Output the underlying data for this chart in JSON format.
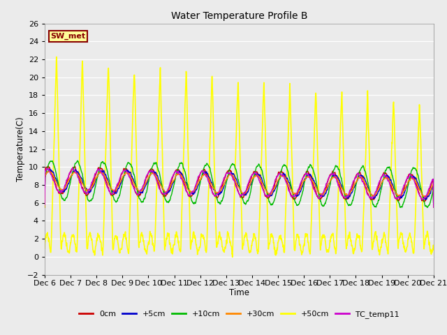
{
  "title": "Water Temperature Profile B",
  "xlabel": "Time",
  "ylabel": "Temperature(C)",
  "ylim": [
    -2,
    26
  ],
  "yticks": [
    -2,
    0,
    2,
    4,
    6,
    8,
    10,
    12,
    14,
    16,
    18,
    20,
    22,
    24,
    26
  ],
  "background_color": "#ebebeb",
  "plot_bg_color": "#ebebeb",
  "series": {
    "0cm": {
      "color": "#cc0000",
      "lw": 1.0
    },
    "+5cm": {
      "color": "#0000cc",
      "lw": 1.0
    },
    "+10cm": {
      "color": "#00bb00",
      "lw": 1.0
    },
    "+30cm": {
      "color": "#ff8800",
      "lw": 1.0
    },
    "+50cm": {
      "color": "#ffff00",
      "lw": 1.2
    },
    "TC_temp11": {
      "color": "#cc00cc",
      "lw": 1.0
    }
  },
  "annotation_label": "SW_met",
  "annotation_bg": "#ffff99",
  "annotation_border": "#880000",
  "xtick_labels": [
    "Dec 6",
    "Dec 7",
    "Dec 8",
    "Dec 9",
    "Dec 10",
    "Dec 11",
    "Dec 12",
    "Dec 13",
    "Dec 14",
    "Dec 15",
    "Dec 16",
    "Dec 17",
    "Dec 18",
    "Dec 19",
    "Dec 20",
    "Dec 21"
  ],
  "num_days": 15
}
